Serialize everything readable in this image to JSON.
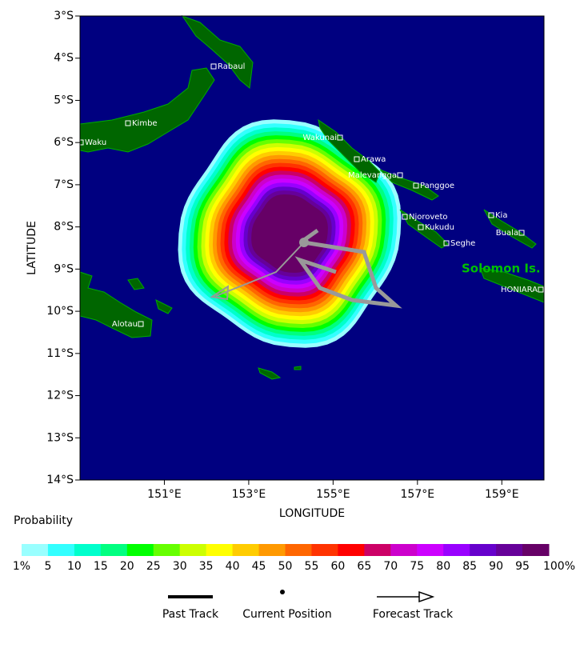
{
  "map": {
    "lat_ticks": [
      "3°S",
      "4°S",
      "5°S",
      "6°S",
      "7°S",
      "8°S",
      "9°S",
      "10°S",
      "11°S",
      "12°S",
      "13°S",
      "14°S"
    ],
    "lon_ticks": [
      "151°E",
      "153°E",
      "155°E",
      "157°E",
      "159°E"
    ],
    "y_label": "LATITUDE",
    "x_label": "LONGITUDE",
    "places": [
      "Rabaul",
      "Kimbe",
      "Waku",
      "Wakunai",
      "Arawa",
      "Malevangga",
      "Panggoe",
      "Njoroveto",
      "Kia",
      "Kukudu",
      "Buala",
      "Seghe",
      "HONIARA",
      "Alotau"
    ],
    "region_label": "Solomon Is."
  },
  "legend": {
    "title": "Probability",
    "items": [
      {
        "label": "1%",
        "color": "#99ffff"
      },
      {
        "label": "5",
        "color": "#33ffff"
      },
      {
        "label": "10",
        "color": "#00ffcc"
      },
      {
        "label": "15",
        "color": "#00ff80"
      },
      {
        "label": "20",
        "color": "#00ff00"
      },
      {
        "label": "25",
        "color": "#66ff00"
      },
      {
        "label": "30",
        "color": "#ccff00"
      },
      {
        "label": "35",
        "color": "#ffff00"
      },
      {
        "label": "40",
        "color": "#ffcc00"
      },
      {
        "label": "45",
        "color": "#ff9900"
      },
      {
        "label": "50",
        "color": "#ff6600"
      },
      {
        "label": "55",
        "color": "#ff3300"
      },
      {
        "label": "60",
        "color": "#ff0000"
      },
      {
        "label": "65",
        "color": "#cc0066"
      },
      {
        "label": "70",
        "color": "#cc00cc"
      },
      {
        "label": "75",
        "color": "#cc00ff"
      },
      {
        "label": "80",
        "color": "#9900ff"
      },
      {
        "label": "85",
        "color": "#6600cc"
      },
      {
        "label": "90",
        "color": "#660099"
      },
      {
        "label": "95",
        "color": "#660066"
      }
    ],
    "end_label": "100%",
    "past_track": "Past Track",
    "current_position": "Current Position",
    "forecast_track": "Forecast Track"
  }
}
